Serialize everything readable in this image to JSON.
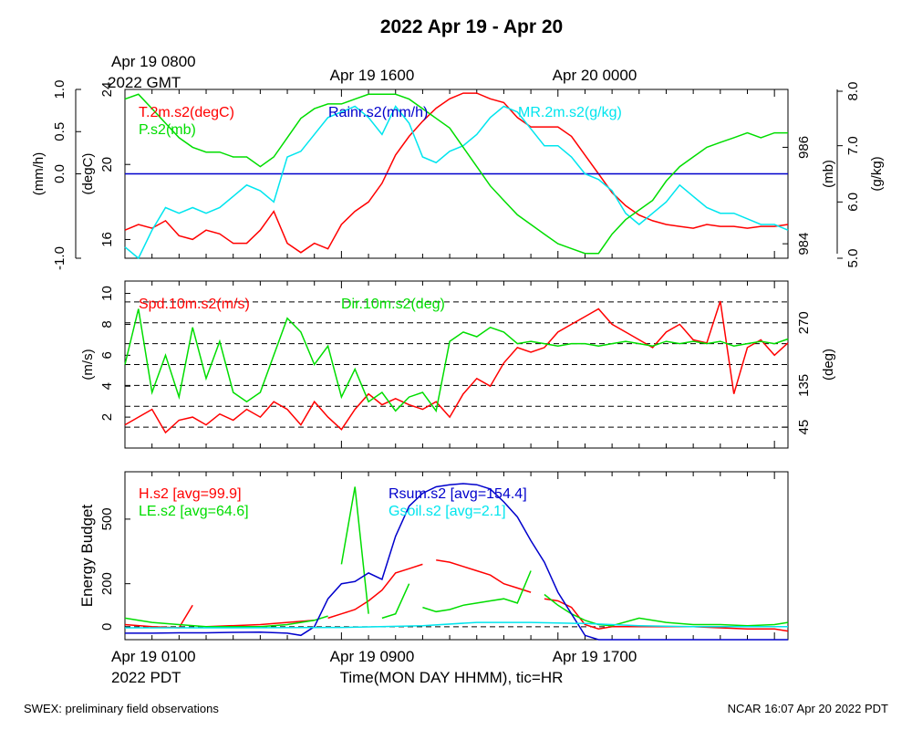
{
  "title": "2022 Apr 19 - Apr 20",
  "top_time_labels": {
    "left_line1": "Apr 19 0800",
    "left_line2": "2022 GMT",
    "mid": "Apr 19 1600",
    "right": "Apr 20 0000"
  },
  "bottom_time_labels": {
    "left_line1": "Apr 19 0100",
    "left_line2": "2022 PDT",
    "mid": "Apr 19 0900",
    "right": "Apr 19 1700"
  },
  "xlabel": "Time(MON DAY HHMM), tic=HR",
  "footer_left": "SWEX: preliminary field observations",
  "footer_right": "NCAR 16:07 Apr 20 2022 PDT",
  "colors": {
    "red": "#ff0000",
    "green": "#00dd00",
    "cyan": "#00e5ee",
    "blue": "#0000cc",
    "black": "#000000"
  },
  "chart_data": [
    {
      "type": "line",
      "panel": "meteorology",
      "x_range_hours_pdt": [
        1,
        25.5
      ],
      "axes": [
        {
          "label": "(mm/h)",
          "side": "left-outer",
          "range": [
            -1.0,
            1.0
          ],
          "ticks": [
            "-1.0",
            "0.0",
            "0.5",
            "1.0"
          ]
        },
        {
          "label": "(degC)",
          "side": "left-inner",
          "range": [
            15,
            24
          ],
          "ticks": [
            "16",
            "20",
            "24"
          ]
        },
        {
          "label": "(mb)",
          "side": "right-inner",
          "range": [
            983.7,
            987.2
          ],
          "ticks": [
            "984",
            "986"
          ]
        },
        {
          "label": "(g/kg)",
          "side": "right-outer",
          "range": [
            5.0,
            8.0
          ],
          "ticks": [
            "5.0",
            "6.0",
            "7.0",
            "8.0"
          ]
        }
      ],
      "series": [
        {
          "name": "T.2m.s2(degC)",
          "axis": 1,
          "color": "red",
          "x": [
            1,
            1.5,
            2,
            2.5,
            3,
            3.5,
            4,
            4.5,
            5,
            5.5,
            6,
            6.5,
            7,
            7.5,
            8,
            8.5,
            9,
            9.5,
            10,
            10.5,
            11,
            11.5,
            12,
            12.5,
            13,
            13.5,
            14,
            14.5,
            15,
            15.5,
            16,
            16.5,
            17,
            17.5,
            18,
            18.5,
            19,
            19.5,
            20,
            20.5,
            21,
            21.5,
            22,
            22.5,
            23,
            23.5,
            24,
            24.5,
            25,
            25.5
          ],
          "y": [
            16.5,
            16.8,
            16.6,
            17.0,
            16.2,
            16.0,
            16.5,
            16.3,
            15.8,
            15.8,
            16.5,
            17.5,
            15.8,
            15.3,
            15.8,
            15.5,
            16.8,
            17.5,
            18.0,
            19.0,
            20.5,
            21.5,
            22.3,
            23.0,
            23.5,
            23.8,
            23.8,
            23.5,
            23.3,
            22.5,
            22.0,
            22.0,
            22.0,
            21.5,
            20.5,
            19.5,
            18.5,
            17.8,
            17.3,
            17.0,
            16.8,
            16.7,
            16.6,
            16.8,
            16.7,
            16.7,
            16.6,
            16.7,
            16.7,
            16.8
          ]
        },
        {
          "name": "Rainr.s2(mm/h)",
          "axis": 0,
          "color": "blue",
          "x": [
            1,
            25.5
          ],
          "y": [
            0.0,
            0.0
          ]
        },
        {
          "name": "MR.2m.s2(g/kg)",
          "axis": 3,
          "color": "cyan",
          "x": [
            1,
            1.5,
            2,
            2.5,
            3,
            3.5,
            4,
            4.5,
            5,
            5.5,
            6,
            6.5,
            7,
            7.5,
            8,
            8.5,
            9,
            9.5,
            10,
            10.5,
            11,
            11.5,
            12,
            12.5,
            13,
            13.5,
            14,
            14.5,
            15,
            15.5,
            16,
            16.5,
            17,
            17.5,
            18,
            18.5,
            19,
            19.5,
            20,
            20.5,
            21,
            21.5,
            22,
            22.5,
            23,
            23.5,
            24,
            24.5,
            25,
            25.5
          ],
          "y": [
            5.2,
            5.0,
            5.5,
            5.9,
            5.8,
            5.9,
            5.8,
            5.9,
            6.1,
            6.3,
            6.2,
            6.0,
            6.8,
            6.9,
            7.2,
            7.5,
            7.6,
            7.7,
            7.5,
            7.2,
            7.7,
            7.4,
            6.8,
            6.7,
            6.9,
            7.0,
            7.2,
            7.5,
            7.7,
            7.6,
            7.3,
            7.0,
            7.0,
            6.8,
            6.5,
            6.4,
            6.2,
            5.8,
            5.6,
            5.8,
            6.0,
            6.3,
            6.1,
            5.9,
            5.8,
            5.8,
            5.7,
            5.6,
            5.6,
            5.5
          ]
        },
        {
          "name": "P.s2(mb)",
          "axis": 2,
          "color": "green",
          "x": [
            1,
            1.5,
            2,
            2.5,
            3,
            3.5,
            4,
            4.5,
            5,
            5.5,
            6,
            6.5,
            7,
            7.5,
            8,
            8.5,
            9,
            9.5,
            10,
            10.5,
            11,
            11.5,
            12,
            12.5,
            13,
            13.5,
            14,
            14.5,
            15,
            15.5,
            16,
            16.5,
            17,
            17.5,
            18,
            18.5,
            19,
            19.5,
            20,
            20.5,
            21,
            21.5,
            22,
            22.5,
            23,
            23.5,
            24,
            24.5,
            25,
            25.5
          ],
          "y": [
            987.0,
            987.1,
            986.8,
            986.5,
            986.2,
            986.0,
            985.9,
            985.9,
            985.8,
            985.8,
            985.6,
            985.8,
            986.2,
            986.6,
            986.8,
            986.9,
            986.9,
            987.0,
            987.1,
            987.1,
            987.1,
            987.0,
            986.8,
            986.6,
            986.4,
            986.0,
            985.6,
            985.2,
            984.9,
            984.6,
            984.4,
            984.2,
            984.0,
            983.9,
            983.8,
            983.8,
            984.2,
            984.5,
            984.7,
            984.9,
            985.3,
            985.6,
            985.8,
            986.0,
            986.1,
            986.2,
            986.3,
            986.2,
            986.3,
            986.3
          ]
        }
      ],
      "legend": [
        {
          "text": "T.2m.s2(degC)",
          "color": "red"
        },
        {
          "text": "P.s2(mb)",
          "color": "green"
        },
        {
          "text": "Rainr.s2(mm/h)",
          "color": "blue"
        },
        {
          "text": "MR.2m.s2(g/kg)",
          "color": "cyan"
        }
      ]
    },
    {
      "type": "line",
      "panel": "wind",
      "x_range_hours_pdt": [
        1,
        25.5
      ],
      "axes": [
        {
          "label": "(m/s)",
          "side": "left",
          "range": [
            0,
            10.8
          ],
          "ticks": [
            "2",
            "4",
            "6",
            "8",
            "10"
          ]
        },
        {
          "label": "(deg)",
          "side": "right",
          "range": [
            0,
            360
          ],
          "ticks": [
            "45",
            "135",
            "270"
          ]
        }
      ],
      "dashed_directions_deg": [
        45,
        90,
        135,
        180,
        225,
        270,
        315,
        360
      ],
      "series": [
        {
          "name": "Spd.10m.s2(m/s)",
          "axis": 0,
          "color": "red",
          "x": [
            1,
            1.5,
            2,
            2.5,
            3,
            3.5,
            4,
            4.5,
            5,
            5.5,
            6,
            6.5,
            7,
            7.5,
            8,
            8.5,
            9,
            9.5,
            10,
            10.5,
            11,
            11.5,
            12,
            12.5,
            13,
            13.5,
            14,
            14.5,
            15,
            15.5,
            16,
            16.5,
            17,
            17.5,
            18,
            18.5,
            19,
            19.5,
            20,
            20.5,
            21,
            21.5,
            22,
            22.5,
            23,
            23.5,
            24,
            24.5,
            25,
            25.5
          ],
          "y": [
            1.5,
            2.0,
            2.5,
            1.0,
            1.8,
            2.0,
            1.5,
            2.2,
            1.8,
            2.5,
            2.0,
            3.0,
            2.5,
            1.5,
            3.0,
            2.0,
            1.2,
            2.5,
            3.5,
            2.8,
            3.2,
            2.8,
            2.5,
            3.0,
            2.0,
            3.5,
            4.5,
            4.0,
            5.5,
            6.5,
            6.2,
            6.5,
            7.5,
            8.0,
            8.5,
            9.0,
            8.0,
            7.5,
            7.0,
            6.5,
            7.5,
            8.0,
            7.0,
            6.8,
            9.5,
            3.5,
            6.5,
            7.0,
            6.0,
            6.8
          ]
        },
        {
          "name": "Dir.10m.s2(deg)",
          "axis": 1,
          "color": "green",
          "x": [
            1,
            1.5,
            2,
            2.5,
            3,
            3.5,
            4,
            4.5,
            5,
            5.5,
            6,
            6.5,
            7,
            7.5,
            8,
            8.5,
            9,
            9.5,
            10,
            10.5,
            11,
            11.5,
            12,
            12.5,
            13,
            13.5,
            14,
            14.5,
            15,
            15.5,
            16,
            16.5,
            17,
            17.5,
            18,
            18.5,
            19,
            19.5,
            20,
            20.5,
            21,
            21.5,
            22,
            22.5,
            23,
            23.5,
            24,
            24.5,
            25,
            25.5
          ],
          "y": [
            180,
            300,
            120,
            200,
            110,
            260,
            150,
            230,
            120,
            100,
            120,
            200,
            280,
            250,
            180,
            220,
            110,
            170,
            100,
            120,
            80,
            110,
            120,
            80,
            230,
            250,
            240,
            260,
            250,
            225,
            230,
            225,
            220,
            225,
            225,
            220,
            225,
            230,
            225,
            220,
            230,
            225,
            230,
            225,
            230,
            220,
            225,
            230,
            225,
            235
          ]
        }
      ],
      "legend": [
        {
          "text": "Spd.10m.s2(m/s)",
          "color": "red"
        },
        {
          "text": "Dir.10m.s2(deg)",
          "color": "green"
        }
      ]
    },
    {
      "type": "line",
      "panel": "energy",
      "x_range_hours_pdt": [
        1,
        25.5
      ],
      "ylabel": "Energy Budget",
      "ylim": [
        -60,
        720
      ],
      "yticks": [
        0,
        200,
        500
      ],
      "series": [
        {
          "name": "H.s2 [avg=99.9]",
          "color": "red",
          "x": [
            1,
            2,
            3,
            3.5,
            4,
            6,
            7,
            8,
            8.5,
            9,
            9.5,
            10,
            10.5,
            11,
            11.5,
            12,
            12.5,
            13,
            13.5,
            14,
            14.5,
            15,
            15.5,
            16,
            16.5,
            17,
            17.5,
            18,
            18.5,
            19,
            20,
            21,
            22,
            23,
            24,
            25,
            25.5
          ],
          "y": [
            10,
            0,
            -5,
            100,
            0,
            10,
            20,
            30,
            40,
            60,
            80,
            120,
            170,
            250,
            270,
            290,
            310,
            300,
            280,
            260,
            240,
            200,
            180,
            160,
            130,
            120,
            90,
            10,
            -10,
            0,
            0,
            0,
            0,
            -5,
            -10,
            -10,
            -20
          ],
          "gaps_after_index": [
            3,
            7,
            15,
            23
          ]
        },
        {
          "name": "LE.s2 [avg=64.6]",
          "color": "green",
          "x": [
            1,
            2,
            3,
            4,
            5,
            6,
            7,
            8,
            8.5,
            9,
            9.5,
            10,
            10.5,
            11,
            11.5,
            12,
            12.5,
            13,
            13.5,
            14,
            14.5,
            15,
            15.5,
            16,
            16.5,
            17,
            17.5,
            18,
            18.5,
            19,
            20,
            21,
            22,
            23,
            24,
            25,
            25.5
          ],
          "y": [
            40,
            20,
            10,
            0,
            0,
            0,
            10,
            30,
            50,
            290,
            650,
            60,
            40,
            60,
            200,
            90,
            70,
            80,
            100,
            110,
            120,
            130,
            110,
            260,
            150,
            100,
            60,
            30,
            10,
            5,
            40,
            20,
            10,
            10,
            5,
            10,
            20
          ],
          "gaps_after_index": [
            8,
            11,
            14,
            23
          ]
        },
        {
          "name": "Rsum.s2 [avg=154.4]",
          "color": "blue",
          "x": [
            1,
            2,
            3,
            4,
            5,
            6,
            7,
            7.5,
            8,
            8.5,
            9,
            9.5,
            10,
            10.5,
            11,
            11.5,
            12,
            12.5,
            13,
            13.5,
            14,
            14.5,
            15,
            15.5,
            16,
            16.5,
            17,
            17.5,
            18,
            18.5,
            19,
            20,
            21,
            22,
            23,
            24,
            25,
            25.5
          ],
          "y": [
            -30,
            -30,
            -28,
            -28,
            -26,
            -25,
            -30,
            -40,
            0,
            130,
            200,
            210,
            250,
            220,
            420,
            560,
            620,
            650,
            660,
            665,
            660,
            640,
            580,
            510,
            400,
            300,
            160,
            60,
            -40,
            -60,
            -60,
            -60,
            -60,
            -60,
            -60,
            -60,
            -60,
            -60
          ]
        },
        {
          "name": "Gsoil.s2 [avg=2.1]",
          "color": "cyan",
          "x": [
            1,
            5,
            9,
            12,
            14,
            16,
            18,
            20,
            22,
            25.5
          ],
          "y": [
            -5,
            -5,
            -3,
            5,
            20,
            20,
            15,
            5,
            0,
            0
          ]
        }
      ],
      "legend": [
        {
          "text": "H.s2 [avg=99.9]",
          "color": "red"
        },
        {
          "text": "LE.s2 [avg=64.6]",
          "color": "green"
        },
        {
          "text": "Rsum.s2 [avg=154.4]",
          "color": "blue"
        },
        {
          "text": "Gsoil.s2 [avg=2.1]",
          "color": "cyan"
        }
      ]
    }
  ]
}
